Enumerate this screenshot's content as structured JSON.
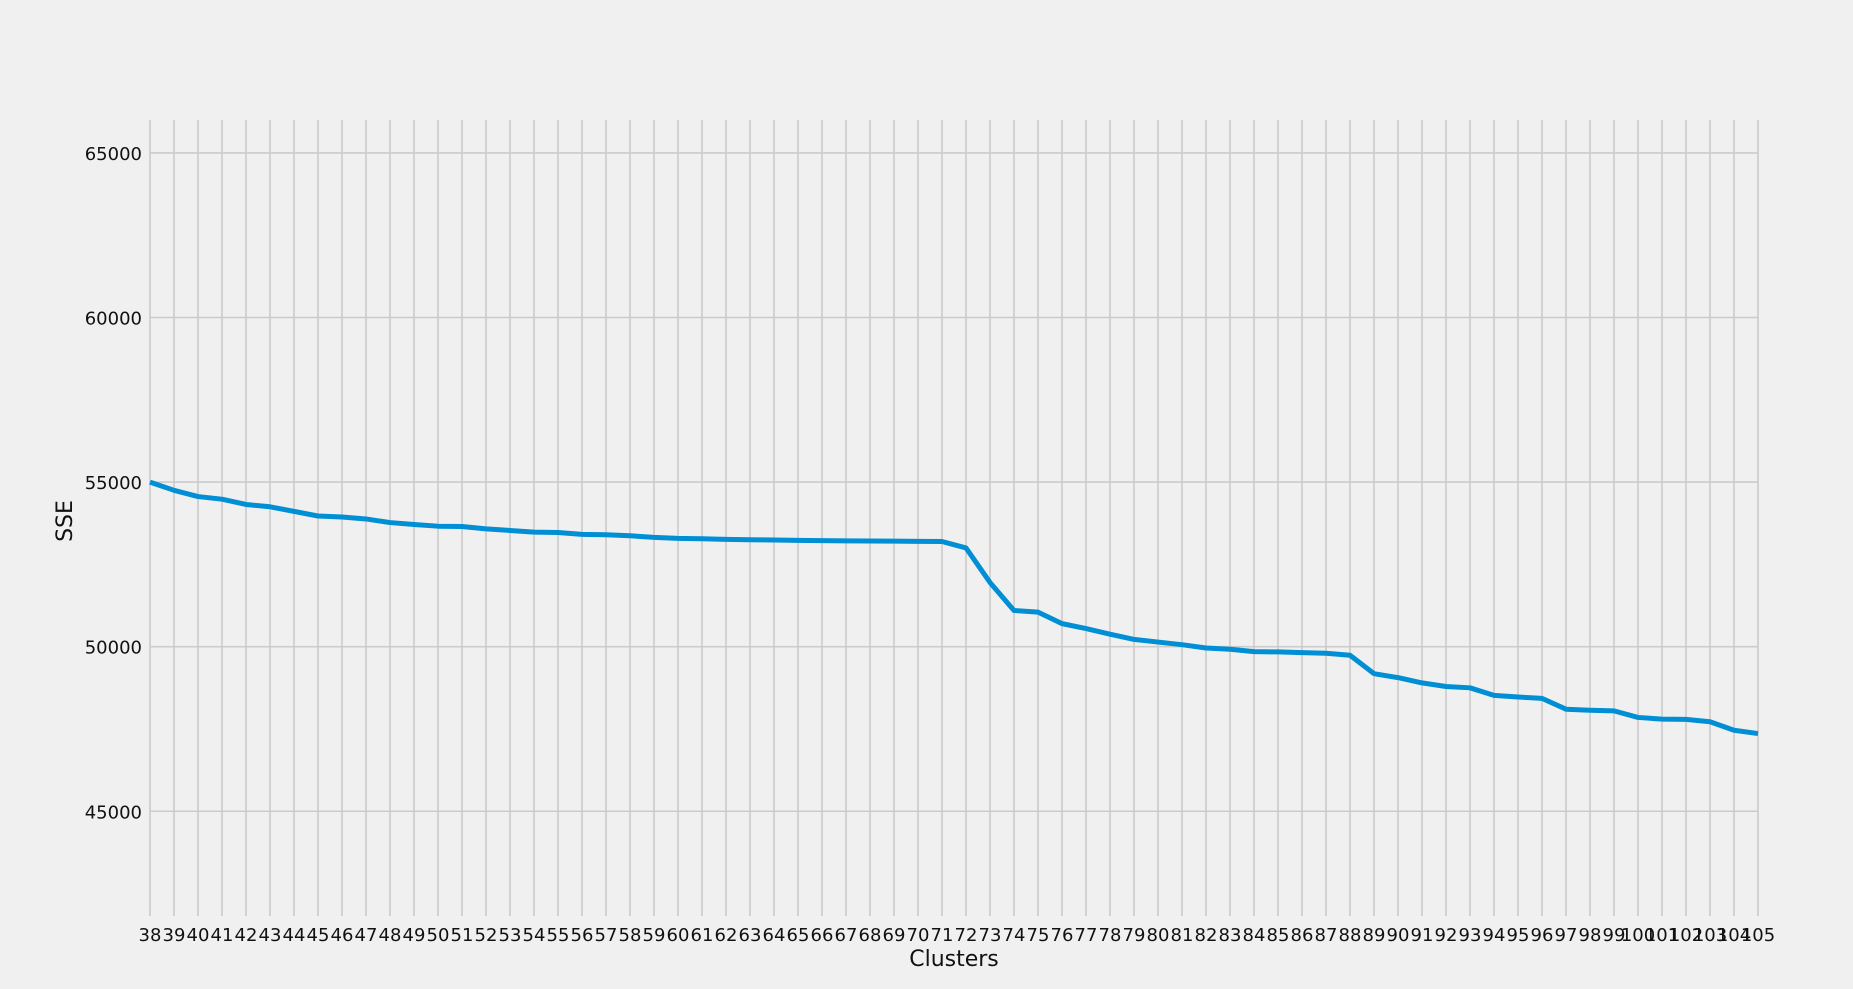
{
  "chart_data": {
    "type": "line",
    "title": "",
    "xlabel": "Clusters",
    "ylabel": "SSE",
    "ylim": [
      42000,
      66000
    ],
    "yticks": [
      45000,
      50000,
      55000,
      60000,
      65000
    ],
    "grid": true,
    "legend": "none",
    "line_color": "#008fd5",
    "x": [
      38,
      39,
      40,
      41,
      42,
      43,
      44,
      45,
      46,
      47,
      48,
      49,
      50,
      51,
      52,
      53,
      54,
      55,
      56,
      57,
      58,
      59,
      60,
      61,
      62,
      63,
      64,
      65,
      66,
      67,
      68,
      69,
      70,
      71,
      72,
      73,
      74,
      75,
      76,
      77,
      78,
      79,
      80,
      81,
      82,
      83,
      84,
      85,
      86,
      87,
      88,
      89,
      90,
      91,
      92,
      93,
      94,
      95,
      96,
      97,
      98,
      99,
      100,
      101,
      102,
      103,
      104,
      105
    ],
    "series": [
      {
        "values": [
          55000,
          54750,
          54560,
          54480,
          54320,
          54250,
          54110,
          53970,
          53940,
          53880,
          53770,
          53710,
          53660,
          53650,
          53580,
          53530,
          53480,
          53470,
          53410,
          53400,
          53370,
          53320,
          53290,
          53280,
          53260,
          53250,
          53240,
          53230,
          53220,
          53215,
          53210,
          53205,
          53200,
          53195,
          53000,
          51950,
          51100,
          51050,
          50700,
          50550,
          50380,
          50220,
          50140,
          50060,
          49960,
          49920,
          49850,
          49840,
          49820,
          49800,
          49740,
          49180,
          49060,
          48900,
          48790,
          48750,
          48520,
          48470,
          48430,
          48100,
          48070,
          48050,
          47850,
          47800,
          47790,
          47720,
          47460,
          47360
        ]
      }
    ]
  }
}
